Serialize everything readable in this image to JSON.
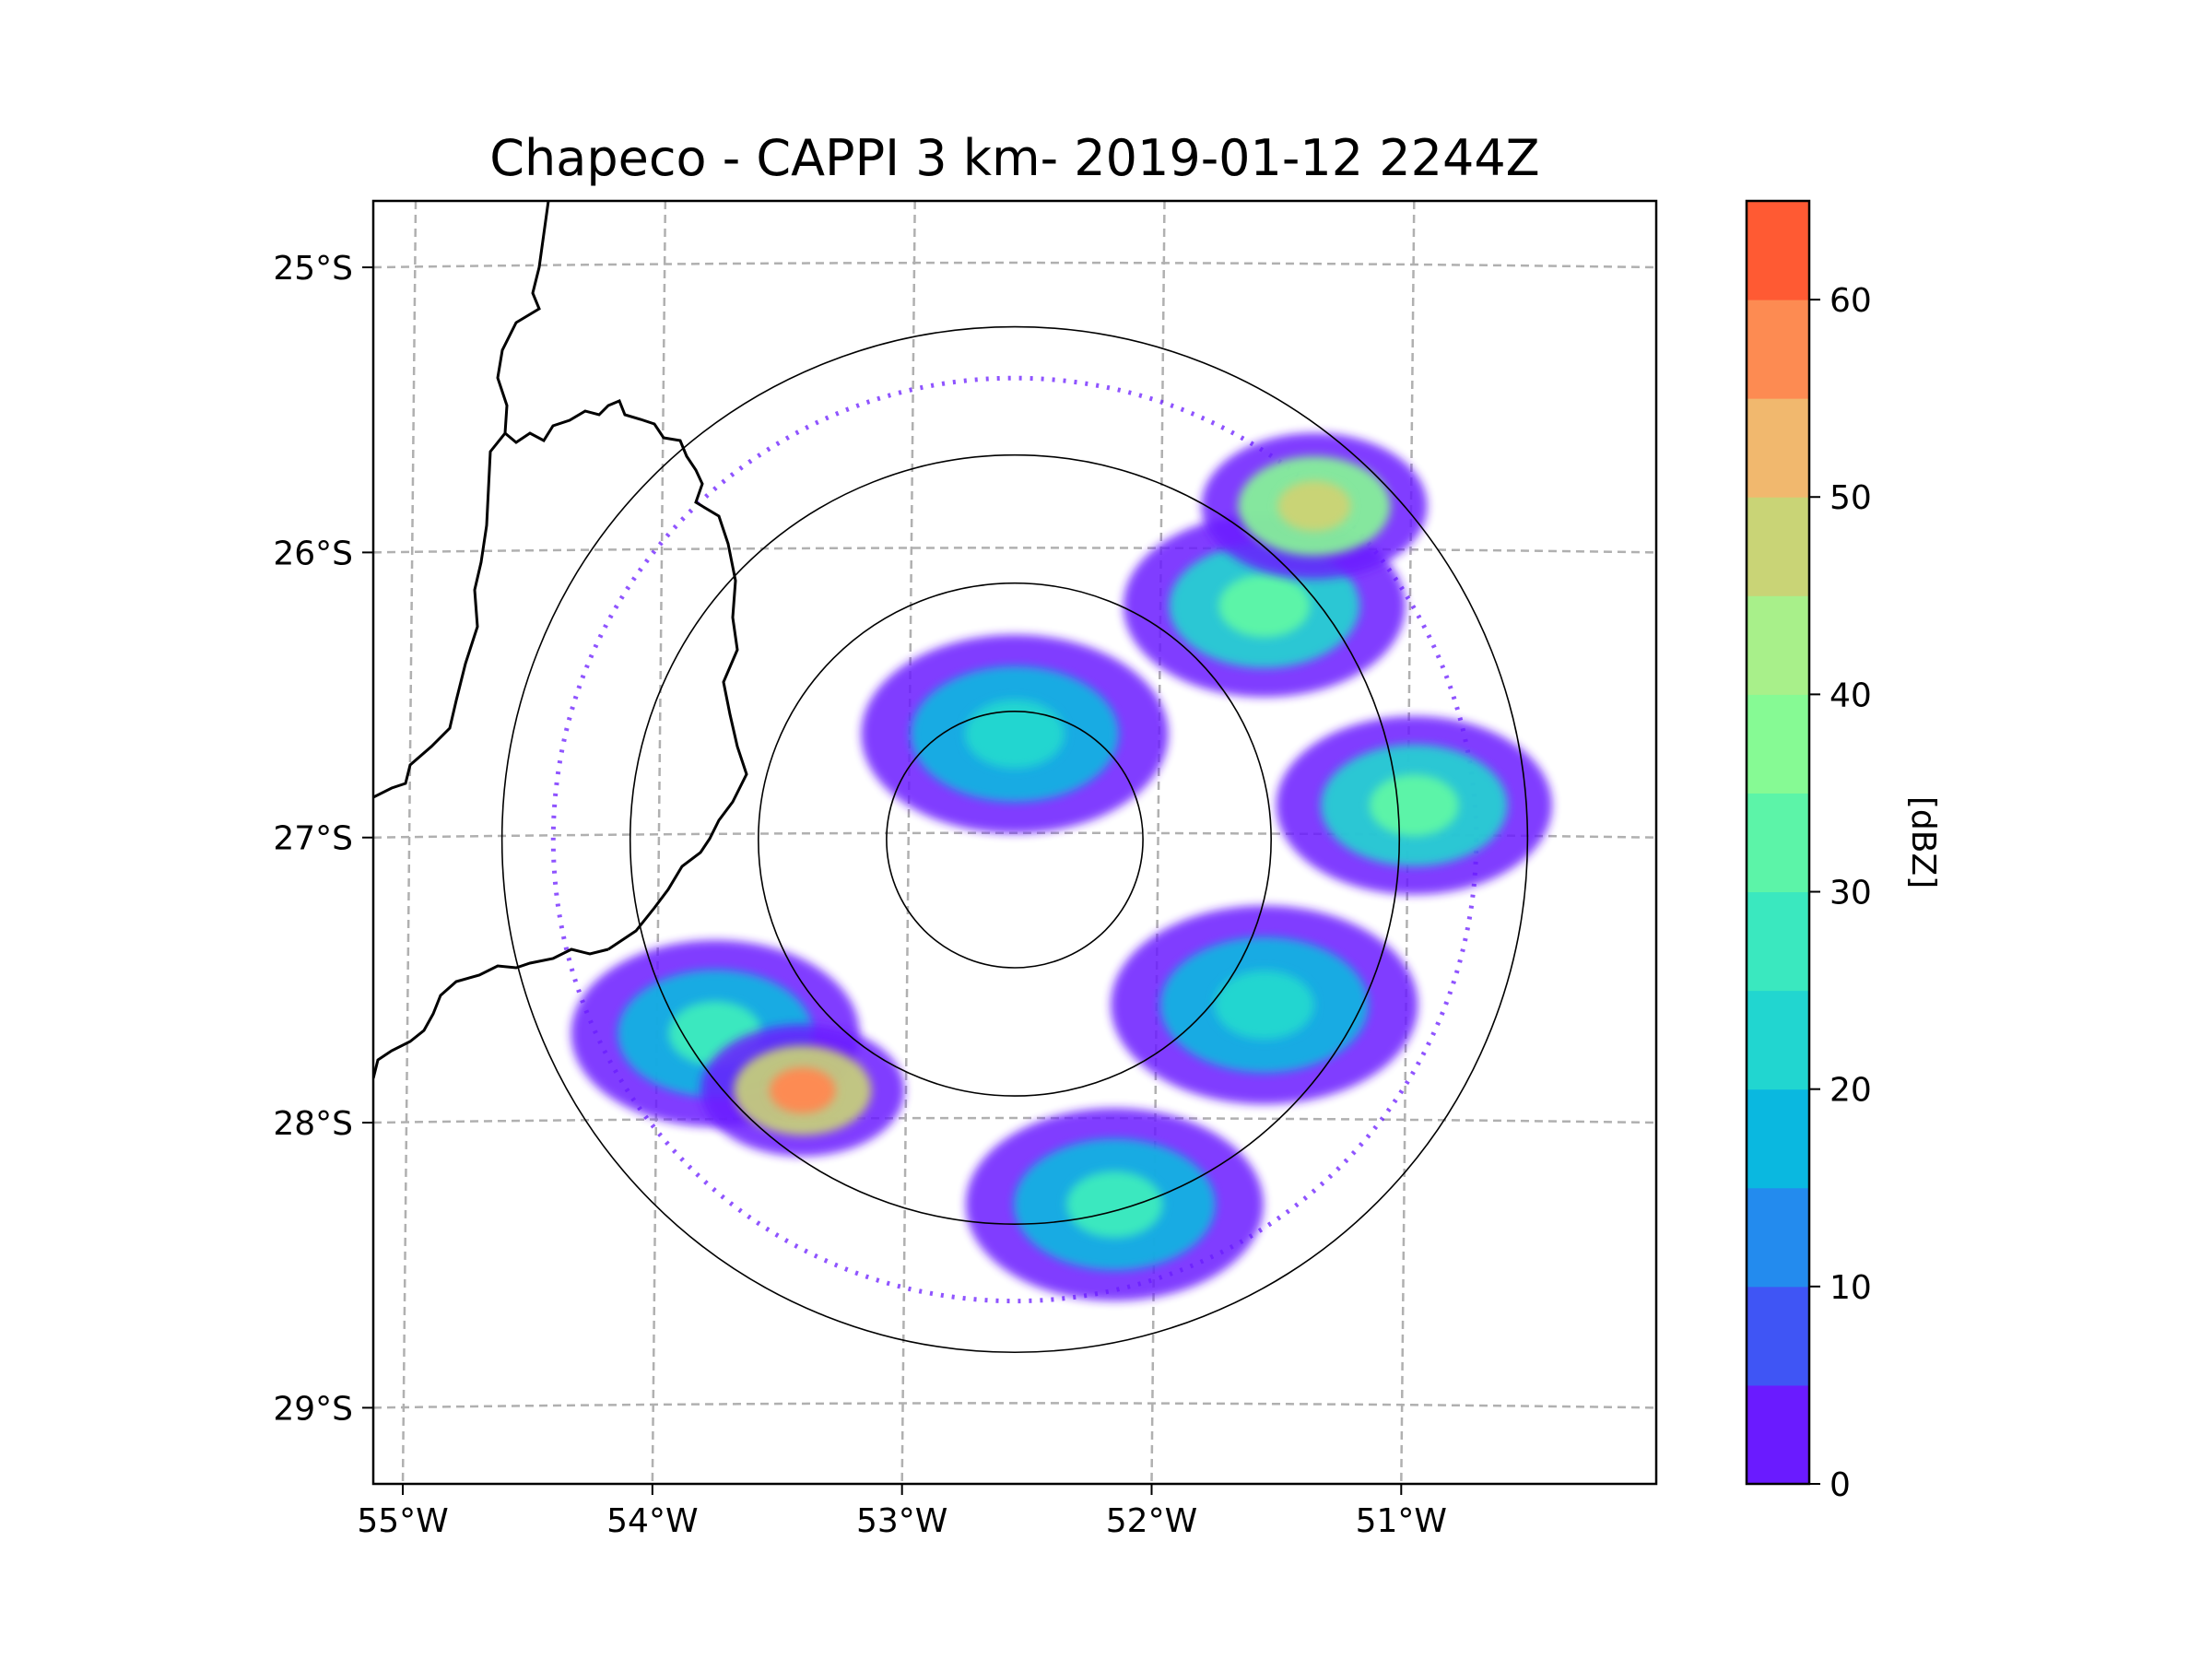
{
  "chart_data": {
    "type": "heatmap",
    "title": "Chapeco - CAPPI 3 km- 2019-01-12 2244Z",
    "x_tick_labels": [
      "55°W",
      "54°W",
      "53°W",
      "52°W",
      "51°W"
    ],
    "x_ticks": [
      -55,
      -54,
      -53,
      -52,
      -51
    ],
    "y_tick_labels": [
      "25°S",
      "26°S",
      "27°S",
      "28°S",
      "29°S"
    ],
    "y_ticks": [
      -25,
      -26,
      -27,
      -28,
      -29
    ],
    "xlim": [
      -55.17,
      -50.03
    ],
    "ylim": [
      -29.28,
      -24.78
    ],
    "grid": "dashed",
    "radar_center": {
      "lon": -52.6,
      "lat": -27.02
    },
    "range_rings_km": [
      50,
      100,
      150,
      200
    ],
    "data_range_km": 180,
    "colorbar": {
      "label": "[dBZ]",
      "tick_labels": [
        "0",
        "10",
        "20",
        "30",
        "40",
        "50",
        "60"
      ],
      "levels": [
        0,
        5,
        10,
        15,
        20,
        25,
        30,
        35,
        40,
        45,
        50,
        55,
        60,
        65
      ],
      "colors": [
        "#6a1bff",
        "#3f55f5",
        "#238bee",
        "#0ab8e0",
        "#21d6d0",
        "#3ae8bf",
        "#5cf4a8",
        "#86fa94",
        "#a8f08a",
        "#c9d476",
        "#f1b86e",
        "#fd8b52",
        "#ff5a33",
        "#ff1d1d"
      ]
    },
    "echoes": [
      {
        "name": "central-ring-echo",
        "lon": -52.6,
        "lat": -26.65,
        "dbz": 22
      },
      {
        "name": "northeast-band",
        "lon": -51.6,
        "lat": -26.2,
        "dbz": 30
      },
      {
        "name": "northeast-core",
        "lon": -51.4,
        "lat": -25.85,
        "dbz": 48
      },
      {
        "name": "east-cell",
        "lon": -51.0,
        "lat": -26.9,
        "dbz": 32
      },
      {
        "name": "southwest-band",
        "lon": -53.8,
        "lat": -27.7,
        "dbz": 28
      },
      {
        "name": "southwest-core",
        "lon": -53.45,
        "lat": -27.9,
        "dbz": 55
      },
      {
        "name": "south-cell",
        "lon": -52.2,
        "lat": -28.3,
        "dbz": 25
      },
      {
        "name": "southeast-cell",
        "lon": -51.6,
        "lat": -27.6,
        "dbz": 22
      }
    ]
  }
}
